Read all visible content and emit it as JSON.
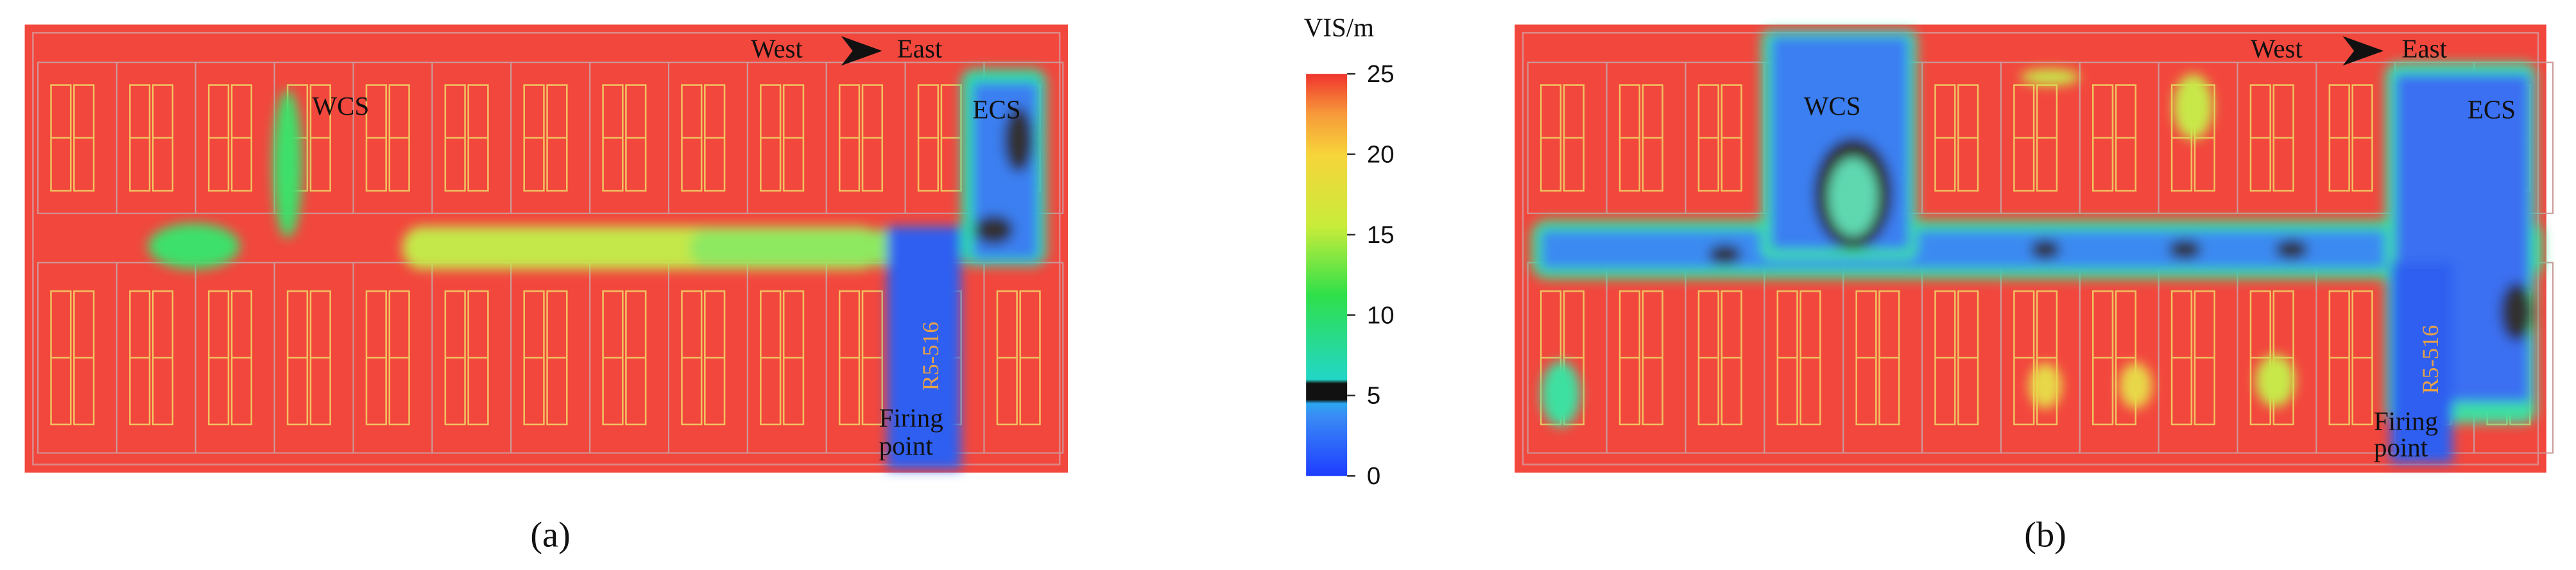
{
  "colorbar": {
    "title": "VIS/m",
    "range": [
      0,
      25
    ],
    "ticks": [
      0,
      5,
      10,
      15,
      20,
      25
    ]
  },
  "panels": [
    {
      "label": "(a)",
      "west": "West",
      "east": "East",
      "wcs": "WCS",
      "ecs": "ECS",
      "room": "R5-516",
      "firing_point": [
        "Firing",
        "point"
      ]
    },
    {
      "label": "(b)",
      "west": "West",
      "east": "East",
      "wcs": "WCS",
      "ecs": "ECS",
      "room": "R5-516",
      "firing_point": [
        "Firing",
        "point"
      ]
    }
  ]
}
